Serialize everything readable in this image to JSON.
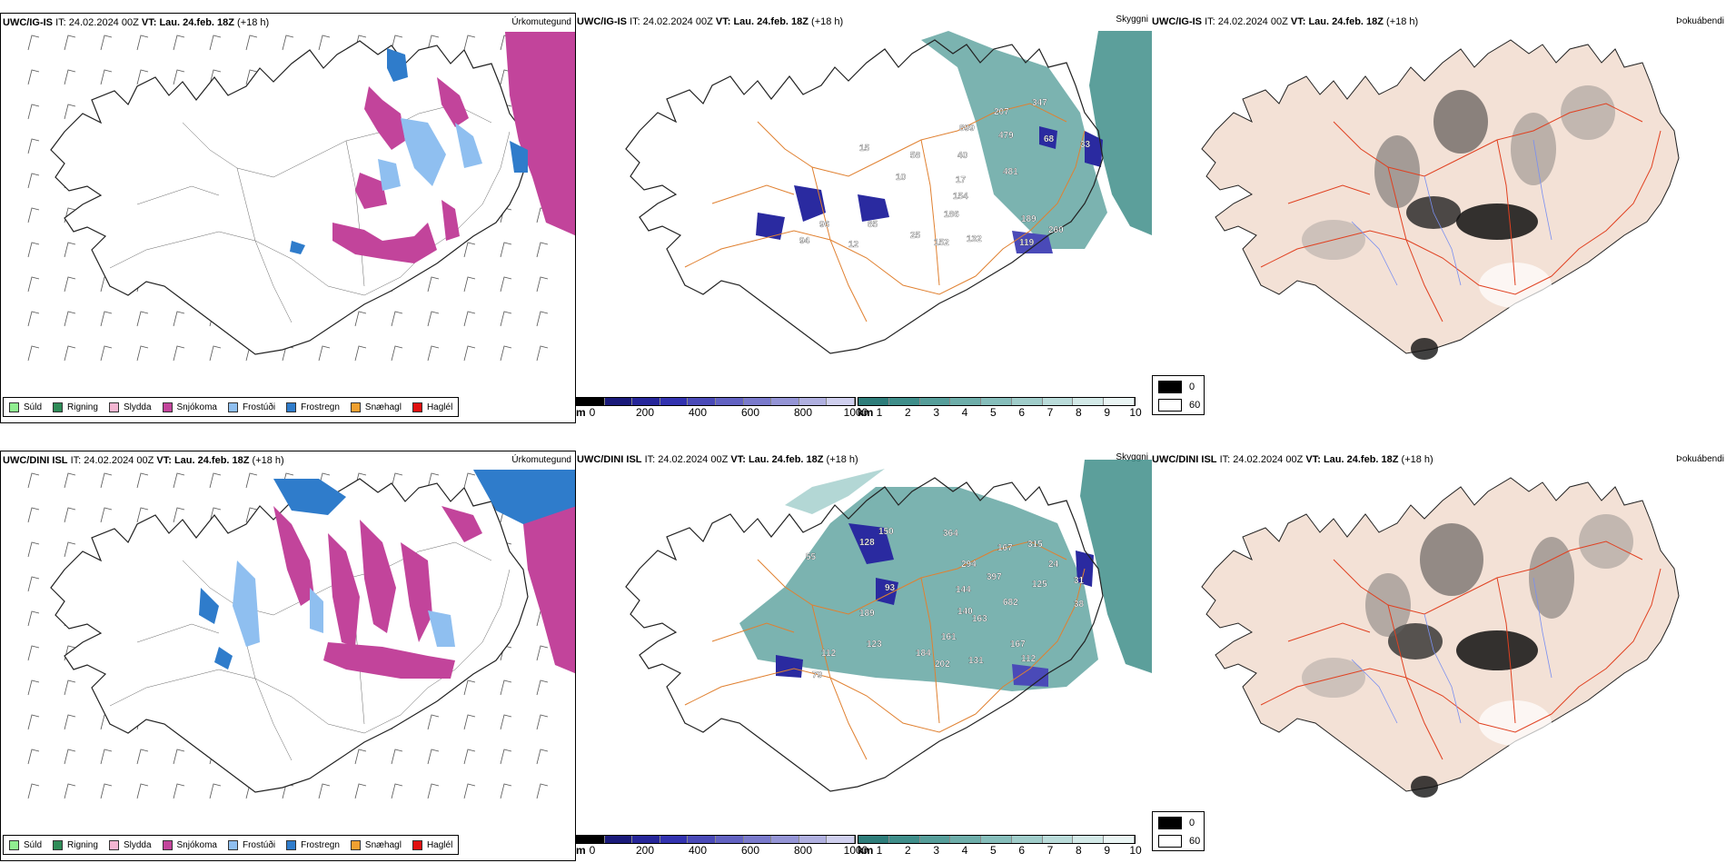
{
  "rows": [
    {
      "model": "UWC/IG-IS",
      "it_label": "IT:",
      "it_value": "24.02.2024 00Z",
      "vt_label": "VT:",
      "vt_value": "Lau. 24.feb. 18Z",
      "lead": "(+18 h)"
    },
    {
      "model": "UWC/DINI ISL",
      "it_label": "IT:",
      "it_value": "24.02.2024 00Z",
      "vt_label": "VT:",
      "vt_value": "Lau. 24.feb. 18Z",
      "lead": "(+18 h)"
    }
  ],
  "panel_titles": {
    "precip": "Úrkomutegund",
    "visibility": "Skyggni",
    "fog": "Þokuábendi"
  },
  "precip_legend": [
    {
      "label": "Súld",
      "color": "#90ee90"
    },
    {
      "label": "Rigning",
      "color": "#2e8b57"
    },
    {
      "label": "Slydda",
      "color": "#f4b6d2"
    },
    {
      "label": "Snjókoma",
      "color": "#c2449b"
    },
    {
      "label": "Frostúði",
      "color": "#8fbff0"
    },
    {
      "label": "Frostregn",
      "color": "#2f7ccb"
    },
    {
      "label": "Snæhagl",
      "color": "#f0a030"
    },
    {
      "label": "Haglél",
      "color": "#e01010"
    }
  ],
  "height_scale": {
    "unit": "m",
    "ticks": [
      "0",
      "200",
      "400",
      "600",
      "800",
      "1000"
    ],
    "colors": [
      "#000000",
      "#1a1a7a",
      "#26269a",
      "#3333b0",
      "#4a4ab8",
      "#6262c2",
      "#7a7acc",
      "#9595d6",
      "#b0b0e0",
      "#cfcfee"
    ]
  },
  "visibility_scale": {
    "unit": "km",
    "ticks": [
      "1",
      "2",
      "3",
      "4",
      "5",
      "6",
      "7",
      "8",
      "9",
      "10"
    ],
    "colors": [
      "#2e7d7a",
      "#3f8e8a",
      "#569e9a",
      "#6eaeaa",
      "#86bebb",
      "#a0cdca",
      "#badcda",
      "#d3eae8",
      "#eaf5f4"
    ]
  },
  "fog_scale": {
    "min": "0",
    "max": "60"
  },
  "labels_top": [
    "207",
    "347",
    "899",
    "479",
    "68",
    "33",
    "40",
    "481",
    "17",
    "154",
    "186",
    "189",
    "260",
    "25",
    "152",
    "132",
    "119",
    "96",
    "94",
    "85",
    "12",
    "58",
    "10",
    "15"
  ],
  "labels_bottom": [
    "364",
    "167",
    "315",
    "294",
    "24",
    "31",
    "397",
    "125",
    "144",
    "38",
    "682",
    "140",
    "163",
    "161",
    "167",
    "184",
    "202",
    "131",
    "112",
    "150",
    "128",
    "93",
    "55",
    "189",
    "123",
    "112",
    "79"
  ]
}
